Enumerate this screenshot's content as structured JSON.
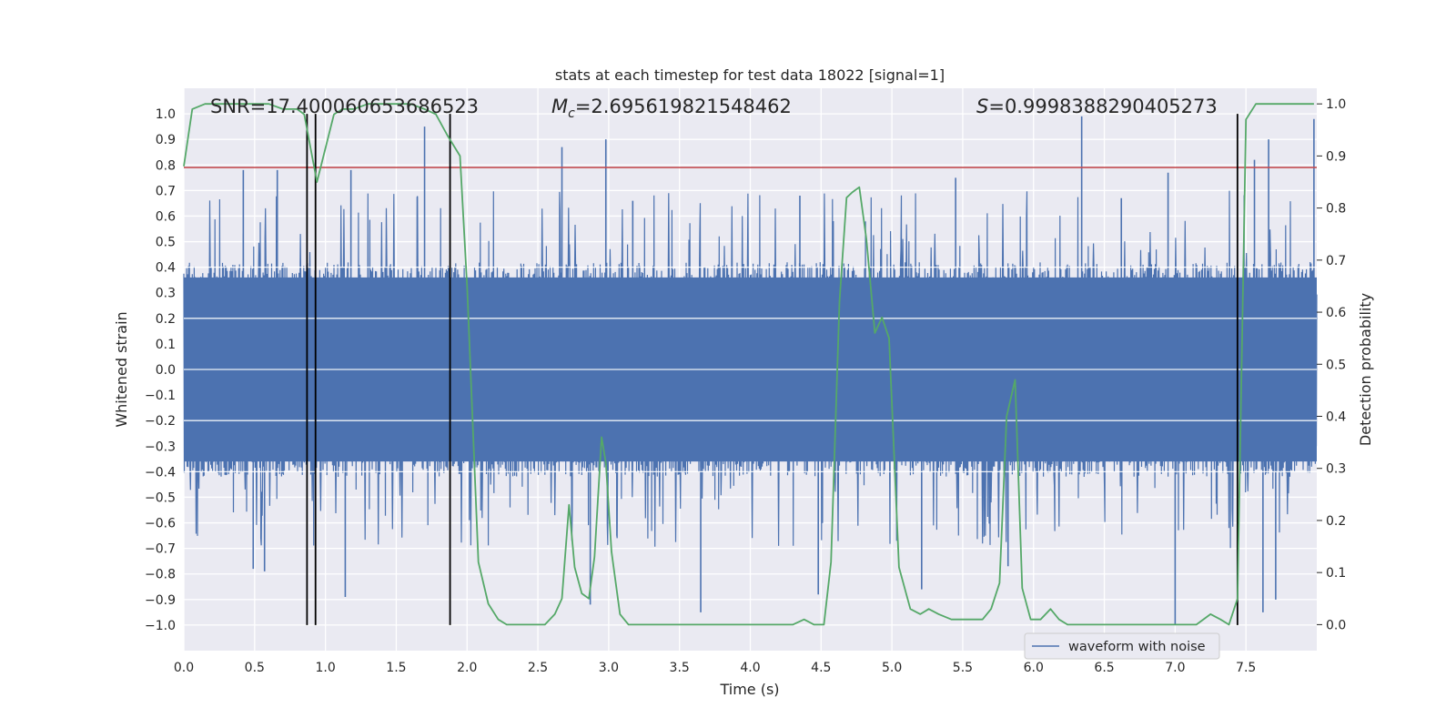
{
  "chart_data": {
    "type": "line",
    "title": "stats at each timestep for test data 18022 [signal=1]",
    "xlabel": "Time (s)",
    "ylabel": "Whitened strain",
    "y2label": "Detection probability",
    "xlim": [
      0.0,
      8.0
    ],
    "ylim": [
      -1.1,
      1.1
    ],
    "y2lim": [
      -0.05,
      1.03
    ],
    "x_ticks": [
      0.0,
      0.5,
      1.0,
      1.5,
      2.0,
      2.5,
      3.0,
      3.5,
      4.0,
      4.5,
      5.0,
      5.5,
      6.0,
      6.5,
      7.0,
      7.5
    ],
    "y_ticks": [
      -1.0,
      -0.9,
      -0.8,
      -0.7,
      -0.6,
      -0.5,
      -0.4,
      -0.3,
      -0.2,
      -0.1,
      0.0,
      0.1,
      0.2,
      0.3,
      0.4,
      0.5,
      0.6,
      0.7,
      0.8,
      0.9,
      1.0
    ],
    "y2_ticks": [
      0.0,
      0.1,
      0.2,
      0.3,
      0.4,
      0.5,
      0.6,
      0.7,
      0.8,
      0.9,
      1.0
    ],
    "grid": true,
    "legend": {
      "placement": "lower-right",
      "entries": [
        "waveform with noise"
      ]
    },
    "annotations": {
      "snr": "SNR=17.400060653686523",
      "mc_symbol": "M",
      "mc_sub": "c",
      "mc_value": "=2.695619821548462",
      "s_symbol": "S",
      "s_value": "=0.9998388290405273"
    },
    "series": [
      {
        "name": "waveform with noise",
        "kind": "noise-envelope",
        "color": "#4c72b0",
        "envelope_dense": [
          -0.4,
          0.4
        ],
        "peaks_positive": [
          [
            0.42,
            0.78
          ],
          [
            0.66,
            0.78
          ],
          [
            1.18,
            0.78
          ],
          [
            1.7,
            0.95
          ],
          [
            2.67,
            0.87
          ],
          [
            2.98,
            0.9
          ],
          [
            3.17,
            0.66
          ],
          [
            4.35,
            0.68
          ],
          [
            5.45,
            0.75
          ],
          [
            6.34,
            0.99
          ],
          [
            6.62,
            0.67
          ],
          [
            6.95,
            0.77
          ],
          [
            7.56,
            0.82
          ],
          [
            7.66,
            0.9
          ],
          [
            7.98,
            0.98
          ]
        ],
        "peaks_negative": [
          [
            0.49,
            -0.78
          ],
          [
            0.57,
            -0.79
          ],
          [
            1.14,
            -0.89
          ],
          [
            2.87,
            -0.92
          ],
          [
            3.65,
            -0.95
          ],
          [
            4.48,
            -0.88
          ],
          [
            5.21,
            -0.86
          ],
          [
            5.82,
            -0.77
          ],
          [
            7.0,
            -1.0
          ],
          [
            7.62,
            -0.95
          ],
          [
            7.71,
            -0.9
          ]
        ]
      },
      {
        "name": "",
        "kind": "probability",
        "color": "#55a868",
        "axis": "right",
        "x": [
          0.0,
          0.06,
          0.15,
          0.35,
          0.6,
          0.7,
          0.8,
          0.85,
          0.94,
          1.06,
          1.12,
          1.2,
          1.3,
          1.45,
          1.6,
          1.7,
          1.78,
          1.86,
          1.95,
          2.0,
          2.08,
          2.15,
          2.22,
          2.28,
          2.35,
          2.45,
          2.55,
          2.62,
          2.67,
          2.72,
          2.76,
          2.81,
          2.86,
          2.9,
          2.95,
          2.98,
          3.02,
          3.08,
          3.14,
          3.2,
          3.4,
          3.6,
          3.8,
          4.0,
          4.1,
          4.2,
          4.3,
          4.38,
          4.45,
          4.52,
          4.57,
          4.63,
          4.68,
          4.72,
          4.77,
          4.82,
          4.88,
          4.93,
          4.98,
          5.05,
          5.13,
          5.2,
          5.26,
          5.33,
          5.42,
          5.5,
          5.58,
          5.64,
          5.7,
          5.76,
          5.81,
          5.87,
          5.92,
          5.98,
          6.05,
          6.12,
          6.18,
          6.24,
          6.3,
          6.4,
          6.6,
          6.8,
          7.0,
          7.15,
          7.25,
          7.32,
          7.38,
          7.44,
          7.5,
          7.57,
          7.64,
          7.75,
          7.9,
          7.98
        ],
        "values": [
          0.88,
          0.99,
          1.0,
          1.0,
          1.0,
          0.99,
          0.99,
          0.98,
          0.85,
          0.98,
          0.99,
          0.99,
          1.0,
          1.0,
          1.0,
          0.99,
          0.98,
          0.94,
          0.9,
          0.65,
          0.12,
          0.04,
          0.01,
          0.0,
          0.0,
          0.0,
          0.0,
          0.02,
          0.05,
          0.23,
          0.11,
          0.06,
          0.05,
          0.13,
          0.36,
          0.31,
          0.14,
          0.02,
          0.0,
          0.0,
          0.0,
          0.0,
          0.0,
          0.0,
          0.0,
          0.0,
          0.0,
          0.01,
          0.0,
          0.0,
          0.12,
          0.62,
          0.82,
          0.83,
          0.84,
          0.74,
          0.56,
          0.59,
          0.55,
          0.11,
          0.03,
          0.02,
          0.03,
          0.02,
          0.01,
          0.01,
          0.01,
          0.01,
          0.03,
          0.08,
          0.4,
          0.47,
          0.07,
          0.01,
          0.01,
          0.03,
          0.01,
          0.0,
          0.0,
          0.0,
          0.0,
          0.0,
          0.0,
          0.0,
          0.02,
          0.01,
          0.0,
          0.05,
          0.97,
          1.0,
          1.0,
          1.0,
          1.0,
          1.0
        ]
      },
      {
        "name": "",
        "kind": "threshold",
        "color": "#c44e52",
        "y": 0.79
      }
    ],
    "vertical_lines": [
      0.87,
      0.93,
      1.88,
      7.44
    ]
  }
}
